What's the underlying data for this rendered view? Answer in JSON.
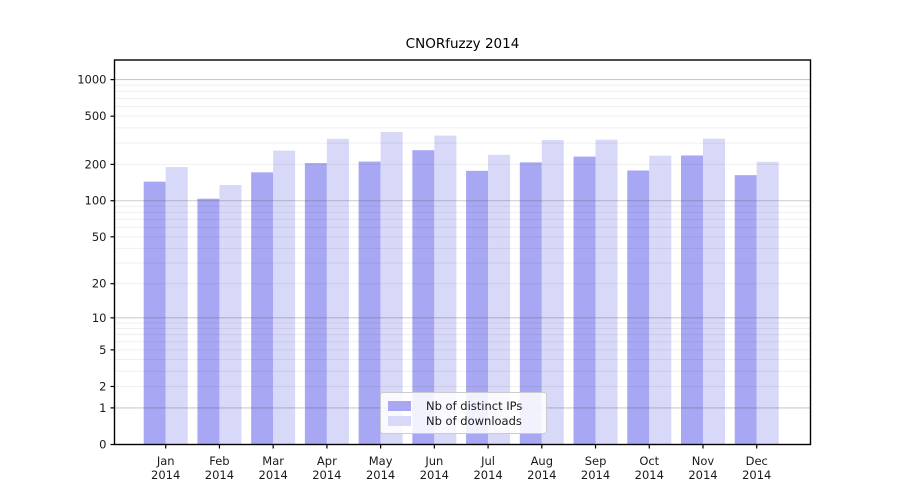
{
  "chart_data": {
    "type": "bar",
    "title": "CNORfuzzy 2014",
    "scale": "log1p",
    "grid": "horizontal major + minor, log-spaced",
    "legend_position": "bottom-center-inside",
    "categories": [
      {
        "month": "Jan",
        "year": "2014"
      },
      {
        "month": "Feb",
        "year": "2014"
      },
      {
        "month": "Mar",
        "year": "2014"
      },
      {
        "month": "Apr",
        "year": "2014"
      },
      {
        "month": "May",
        "year": "2014"
      },
      {
        "month": "Jun",
        "year": "2014"
      },
      {
        "month": "Jul",
        "year": "2014"
      },
      {
        "month": "Aug",
        "year": "2014"
      },
      {
        "month": "Sep",
        "year": "2014"
      },
      {
        "month": "Oct",
        "year": "2014"
      },
      {
        "month": "Nov",
        "year": "2014"
      },
      {
        "month": "Dec",
        "year": "2014"
      }
    ],
    "yticks": [
      0,
      1,
      2,
      5,
      10,
      20,
      50,
      100,
      200,
      500,
      1000
    ],
    "ylim": [
      0,
      1450
    ],
    "series": [
      {
        "key": "distinct-ips",
        "name": "Nb of distinct IPs",
        "color": "#a7a7f3",
        "values": [
          144,
          104,
          172,
          205,
          211,
          262,
          177,
          208,
          232,
          178,
          237,
          163
        ]
      },
      {
        "key": "downloads",
        "name": "Nb of downloads",
        "color": "#d8d8f8",
        "values": [
          190,
          135,
          260,
          325,
          370,
          346,
          240,
          318,
          320,
          236,
          326,
          210
        ]
      }
    ],
    "colors": {
      "background": "#ffffff",
      "axis": "#000000",
      "text": "#1a1a1a",
      "grid_major": "#c9c9c9",
      "grid_minor": "#ececec",
      "legend_border": "#cccccc"
    }
  }
}
